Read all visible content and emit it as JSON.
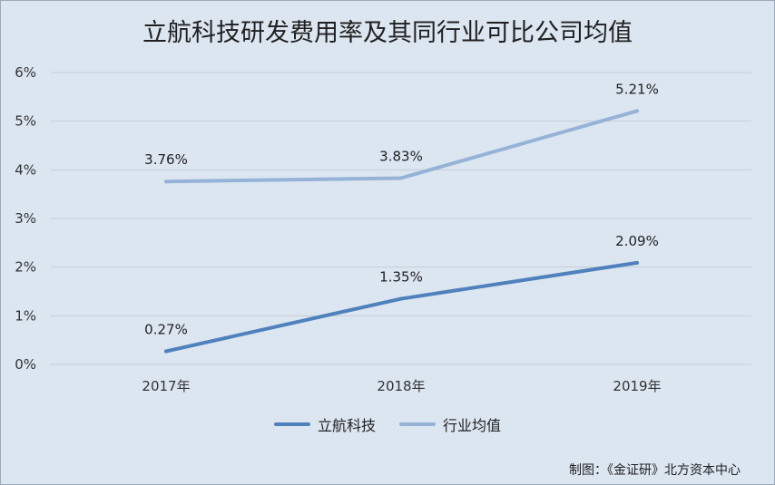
{
  "chart_data": {
    "type": "line",
    "title": "立航科技研发费用率及其同行业可比公司均值",
    "categories": [
      "2017年",
      "2018年",
      "2019年"
    ],
    "ylim": [
      0,
      6
    ],
    "yticks": [
      "0%",
      "1%",
      "2%",
      "3%",
      "4%",
      "5%",
      "6%"
    ],
    "grid": true,
    "legend_position": "bottom",
    "series": [
      {
        "name": "立航科技",
        "values": [
          0.27,
          1.35,
          2.09
        ],
        "labels": [
          "0.27%",
          "1.35%",
          "2.09%"
        ],
        "color": "#4f81bd"
      },
      {
        "name": "行业均值",
        "values": [
          3.76,
          3.83,
          5.21
        ],
        "labels": [
          "3.76%",
          "3.83%",
          "5.21%"
        ],
        "color": "#95b3d7"
      }
    ]
  },
  "source": "制图：《金证研》北方资本中心"
}
